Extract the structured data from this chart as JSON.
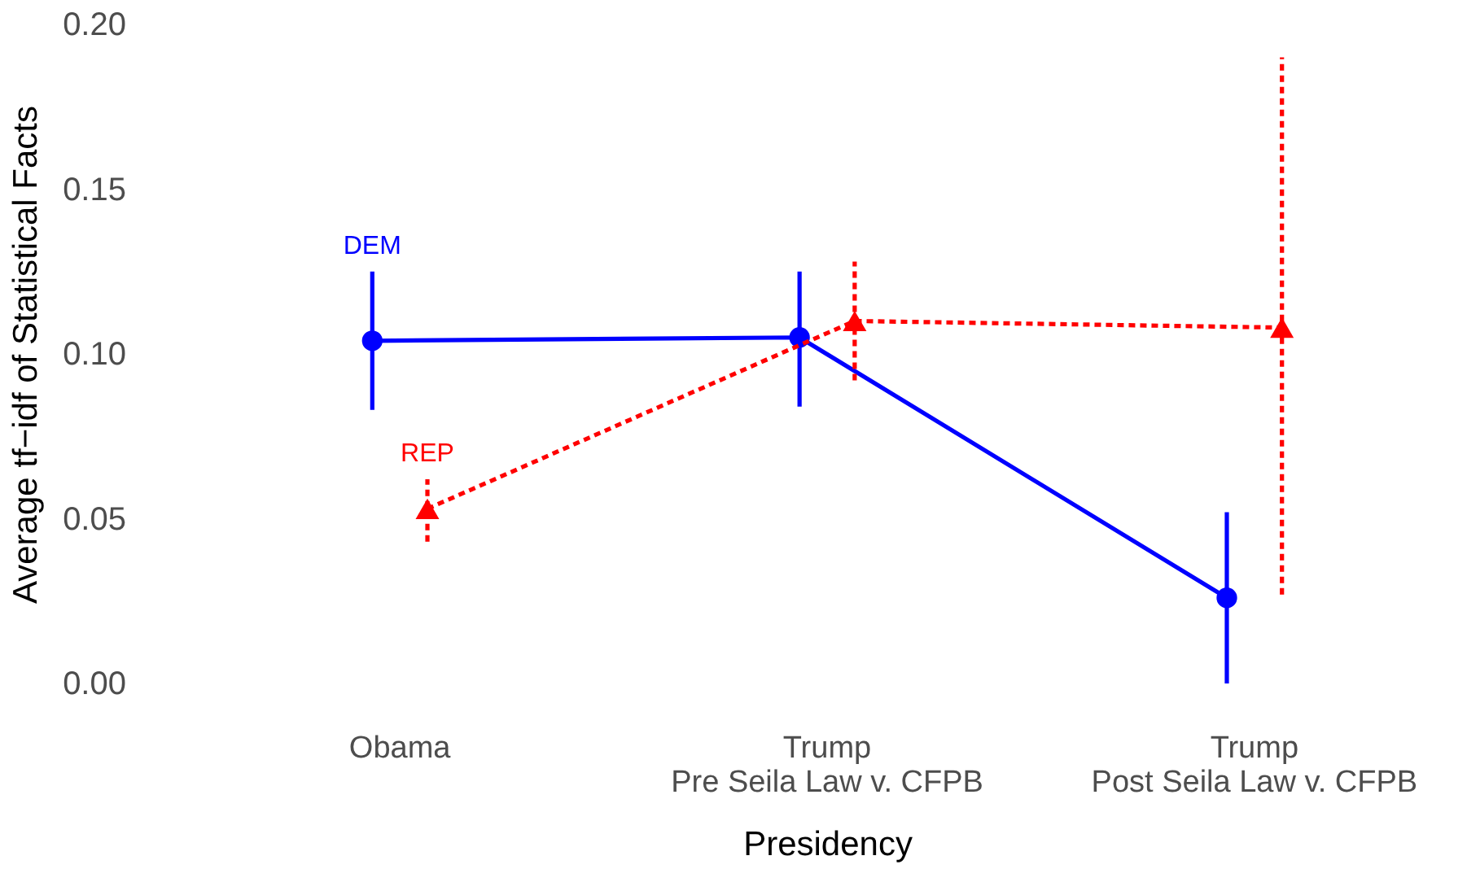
{
  "chart_data": {
    "type": "line",
    "xlabel": "Presidency",
    "ylabel": "Average tf−idf of Statistical Facts",
    "categories": [
      "Obama",
      "Trump\nPre Seila Law v. CFPB",
      "Trump\nPost Seila Law v. CFPB"
    ],
    "series": [
      {
        "name": "DEM",
        "color": "#0000ff",
        "marker": "circle",
        "line_style": "solid",
        "values": [
          0.104,
          0.105,
          0.026
        ],
        "errors": [
          [
            0.083,
            0.125
          ],
          [
            0.084,
            0.125
          ],
          [
            0.0,
            0.052
          ]
        ]
      },
      {
        "name": "REP",
        "color": "#ff0000",
        "marker": "triangle",
        "line_style": "dashed",
        "values": [
          0.053,
          0.11,
          0.108
        ],
        "errors": [
          [
            0.043,
            0.062
          ],
          [
            0.092,
            0.128
          ],
          [
            0.027,
            0.19
          ]
        ]
      }
    ],
    "ylim": [
      0,
      0.2
    ],
    "yticks": [
      {
        "value": 0,
        "label": "0.00"
      },
      {
        "value": 0.05,
        "label": "0.05"
      },
      {
        "value": 0.1,
        "label": "0.10"
      },
      {
        "value": 0.15,
        "label": "0.15"
      },
      {
        "value": 0.2,
        "label": "0.20"
      }
    ],
    "grid": false
  }
}
